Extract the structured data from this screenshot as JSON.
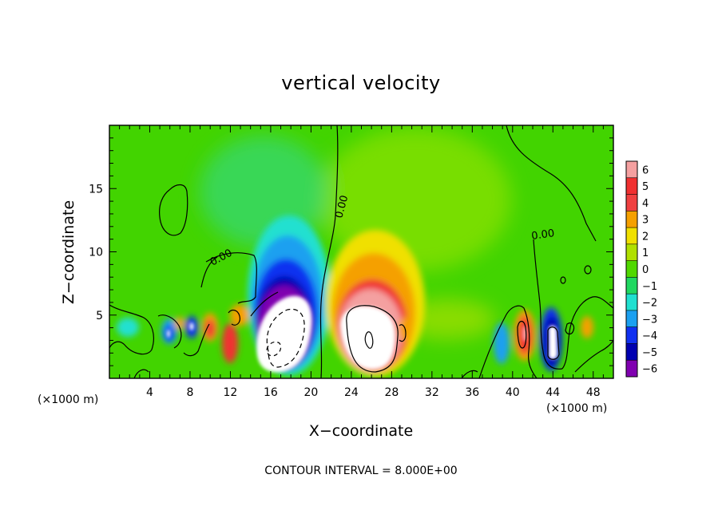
{
  "chart_data": {
    "type": "heatmap",
    "title": "vertical velocity",
    "xlabel": "X−coordinate",
    "ylabel": "Z−coordinate",
    "x_unit_left": "(×1000 m)",
    "x_unit_right": "(×1000 m)",
    "xlim": [
      0,
      50
    ],
    "ylim": [
      0,
      20
    ],
    "x_ticks": [
      4,
      8,
      12,
      16,
      20,
      24,
      28,
      32,
      36,
      40,
      44,
      48
    ],
    "y_ticks": [
      5,
      10,
      15
    ],
    "colorbar": {
      "levels": [
        6,
        5,
        4,
        3,
        2,
        1,
        0,
        -1,
        -2,
        -3,
        -4,
        -5,
        -6
      ],
      "tick_labels": [
        "6",
        "5",
        "4",
        "3",
        "2",
        "1",
        "0",
        "−1",
        "−2",
        "−3",
        "−4",
        "−5",
        "−6"
      ],
      "colors": [
        "#f4a0a0",
        "#f03030",
        "#f04040",
        "#f5a000",
        "#f0e000",
        "#b0e000",
        "#50d800",
        "#20d860",
        "#20e0d0",
        "#1ba0f0",
        "#1030f0",
        "#0000b0",
        "#8000b0"
      ]
    },
    "contour_labels": [
      "0.00",
      "0.00",
      "0.00"
    ],
    "features": [
      {
        "type": "updraft",
        "x": 26,
        "z": 3.2,
        "peak": 16
      },
      {
        "type": "downdraft",
        "x": 17.5,
        "z": 2.8,
        "peak": -16
      },
      {
        "type": "downdraft",
        "x": 43.8,
        "z": 2.8,
        "peak": -7
      },
      {
        "type": "updraft",
        "x": 41,
        "z": 3.2,
        "peak": 5
      }
    ],
    "contour_interval_text": "CONTOUR INTERVAL = 8.000E+00"
  }
}
